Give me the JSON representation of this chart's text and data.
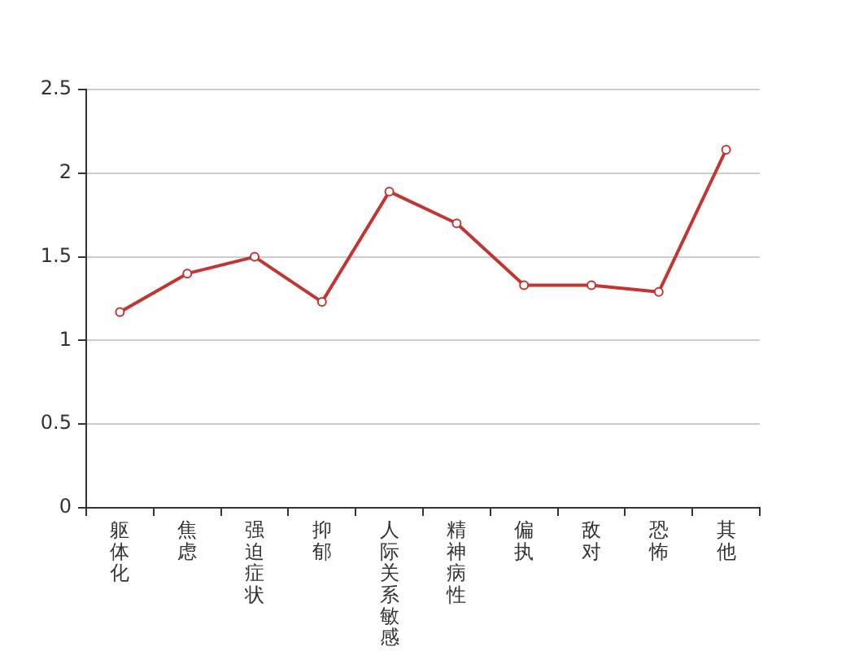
{
  "chart_data": {
    "type": "line",
    "categories": [
      "躯体化",
      "焦虑",
      "强迫症状",
      "抑郁",
      "人际关系敏感",
      "精神病性",
      "偏执",
      "敌对",
      "恐怖",
      "其他"
    ],
    "values": [
      1.17,
      1.4,
      1.5,
      1.23,
      1.89,
      1.7,
      1.33,
      1.33,
      1.29,
      2.14
    ],
    "color": "#c23531",
    "ylim": [
      0,
      2.5
    ],
    "yticks": [
      0,
      0.5,
      1,
      1.5,
      2,
      2.5
    ],
    "grid": "y",
    "marker": "circle"
  }
}
